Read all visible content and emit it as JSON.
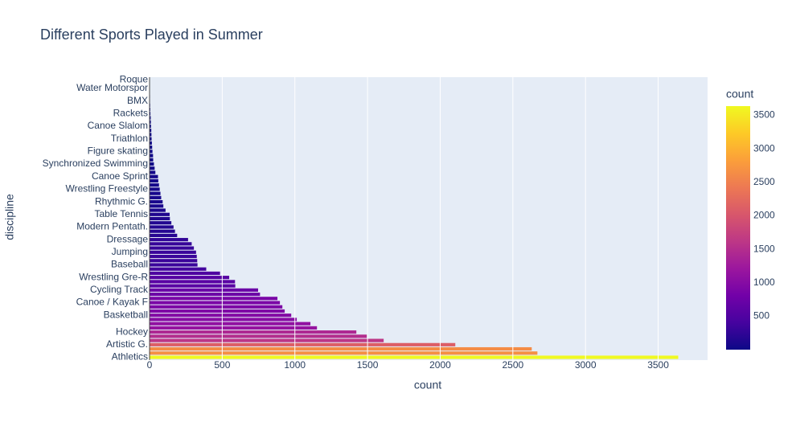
{
  "chart_data": {
    "type": "bar",
    "orientation": "horizontal",
    "title": "Different Sports Played in Summer",
    "x_label": "count",
    "y_label": "discipline",
    "colorbar_title": "count",
    "categories": [
      "Athletics",
      null,
      null,
      "Artistic G.",
      null,
      null,
      "Hockey",
      null,
      null,
      null,
      "Basketball",
      null,
      null,
      "Canoe / Kayak F",
      null,
      null,
      "Cycling Track",
      null,
      null,
      "Wrestling Gre-R",
      null,
      null,
      "Baseball",
      null,
      null,
      "Jumping",
      null,
      null,
      "Dressage",
      null,
      null,
      "Modern Pentath.",
      null,
      null,
      "Table Tennis",
      null,
      null,
      "Rhythmic G.",
      null,
      null,
      "Wrestling Freestyle",
      null,
      null,
      "Canoe Sprint",
      null,
      null,
      "Synchronized Swimming",
      null,
      null,
      "Figure skating",
      null,
      null,
      "Triathlon",
      null,
      null,
      "Canoe Slalom",
      null,
      null,
      "Rackets",
      null,
      null,
      "BMX",
      null,
      null,
      "Water Motorspor",
      null,
      "Roque"
    ],
    "values": [
      3638,
      2669,
      2630,
      2104,
      1611,
      1495,
      1423,
      1152,
      1107,
      1013,
      975,
      930,
      914,
      897,
      880,
      760,
      747,
      590,
      588,
      548,
      485,
      390,
      330,
      328,
      325,
      320,
      305,
      290,
      265,
      190,
      175,
      165,
      150,
      140,
      138,
      110,
      95,
      90,
      80,
      75,
      70,
      65,
      60,
      58,
      40,
      35,
      30,
      25,
      24,
      20,
      18,
      16,
      14,
      13,
      12,
      10,
      9,
      8,
      6,
      5,
      4,
      3,
      3,
      2,
      2,
      1,
      1
    ],
    "xlim": [
      0,
      3840
    ],
    "xticks": [
      0,
      500,
      1000,
      1500,
      2000,
      2500,
      3000,
      3500
    ],
    "colorscale": [
      "#0d0887",
      "#46039f",
      "#7201a8",
      "#9c179e",
      "#bd3786",
      "#d8576b",
      "#ed7953",
      "#fb9f3a",
      "#fdca26",
      "#f0f921"
    ],
    "colorlim": [
      1,
      3638
    ],
    "colorticks": [
      500,
      1000,
      1500,
      2000,
      2500,
      3000,
      3500
    ],
    "grid": true
  }
}
